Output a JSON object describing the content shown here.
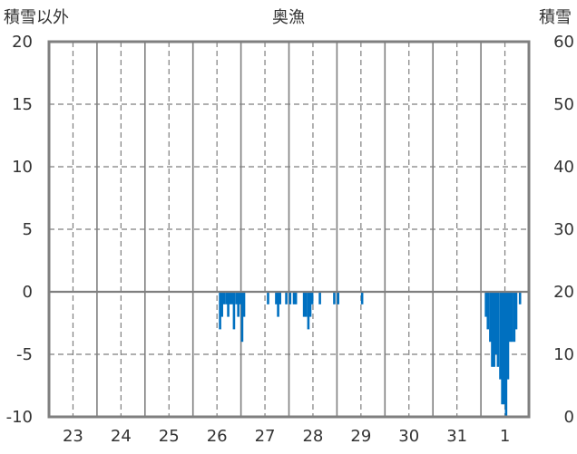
{
  "chart_data": {
    "type": "bar",
    "title": "奥漁",
    "left_axis_label": "積雪以外",
    "right_axis_label": "積雪",
    "left_ylim": [
      -10,
      20
    ],
    "left_yticks": [
      "20",
      "15",
      "10",
      "5",
      "0",
      "-5",
      "-10"
    ],
    "right_ylim": [
      0,
      60
    ],
    "right_yticks": [
      "60",
      "50",
      "40",
      "30",
      "20",
      "10",
      "0"
    ],
    "x_tick_labels": [
      "23",
      "24",
      "25",
      "26",
      "27",
      "28",
      "29",
      "30",
      "31",
      "1"
    ],
    "x_range_days": [
      22.5,
      32.5
    ],
    "grid": true,
    "series_color": "#0070c0",
    "series": [
      {
        "times": [
          26.04,
          26.08,
          26.12,
          26.17,
          26.21,
          26.25,
          26.29,
          26.33,
          26.38,
          26.42,
          26.46,
          26.5,
          26.54,
          27.04,
          27.21,
          27.25,
          27.29,
          27.42,
          27.5,
          27.58,
          27.62,
          27.79,
          27.83,
          27.88,
          27.92,
          27.96,
          28.12,
          28.42,
          28.5,
          29.0,
          31.58,
          31.62,
          31.67,
          31.71,
          31.75,
          31.79,
          31.83,
          31.88,
          31.92,
          31.96,
          32.0,
          32.04,
          32.08,
          32.12,
          32.17,
          32.21,
          32.29
        ],
        "values": [
          -3,
          -2,
          -1,
          -1,
          -2,
          -1,
          -1,
          -3,
          -1,
          -2,
          -1,
          -4,
          -2,
          -1,
          -1,
          -2,
          -1,
          -1,
          -1,
          -1,
          -1,
          -2,
          -2,
          -3,
          -2,
          -1,
          -1,
          -1,
          -1,
          -1,
          -2,
          -3,
          -4,
          -6,
          -6,
          -5,
          -6,
          -7,
          -9,
          -9,
          -10,
          -7,
          -4,
          -4,
          -4,
          -3,
          -1
        ]
      }
    ]
  }
}
